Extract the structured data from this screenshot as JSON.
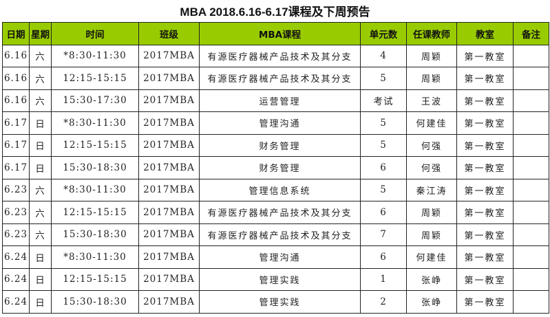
{
  "title": "MBA 2018.6.16-6.17课程及下周预告",
  "header_color": "#99cc00",
  "columns": [
    "日期",
    "星期",
    "时间",
    "班级",
    "MBA课程",
    "单元数",
    "任课教师",
    "教室",
    "备注"
  ],
  "rows": [
    [
      "6.16",
      "六",
      "*8:30-11:30",
      "2017MBA",
      "有源医疗器械产品技术及其分支",
      "4",
      "周颖",
      "第一教室",
      ""
    ],
    [
      "6.16",
      "六",
      "12:15-15:15",
      "2017MBA",
      "有源医疗器械产品技术及其分支",
      "5",
      "周颖",
      "第一教室",
      ""
    ],
    [
      "6.16",
      "六",
      "15:30-17:30",
      "2017MBA",
      "运营管理",
      "考试",
      "王波",
      "第一教室",
      ""
    ],
    [
      "6.17",
      "日",
      "*8:30-11:30",
      "2017MBA",
      "管理沟通",
      "5",
      "何建佳",
      "第一教室",
      ""
    ],
    [
      "6.17",
      "日",
      "12:15-15:15",
      "2017MBA",
      "财务管理",
      "5",
      "何强",
      "第一教室",
      ""
    ],
    [
      "6.17",
      "日",
      "15:30-18:30",
      "2017MBA",
      "财务管理",
      "6",
      "何强",
      "第一教室",
      ""
    ],
    [
      "6.23",
      "六",
      "*8:30-11:30",
      "2017MBA",
      "管理信息系统",
      "5",
      "秦江涛",
      "第一教室",
      ""
    ],
    [
      "6.23",
      "六",
      "12:15-15:15",
      "2017MBA",
      "有源医疗器械产品技术及其分支",
      "6",
      "周颖",
      "第一教室",
      ""
    ],
    [
      "6.23",
      "六",
      "15:30-18:30",
      "2017MBA",
      "有源医疗器械产品技术及其分支",
      "7",
      "周颖",
      "第一教室",
      ""
    ],
    [
      "6.24",
      "日",
      "*8:30-11:30",
      "2017MBA",
      "管理沟通",
      "6",
      "何建佳",
      "第一教室",
      ""
    ],
    [
      "6.24",
      "日",
      "12:15-15:15",
      "2017MBA",
      "管理实践",
      "1",
      "张峥",
      "第一教室",
      ""
    ],
    [
      "6.24",
      "日",
      "15:30-18:30",
      "2017MBA",
      "管理实践",
      "2",
      "张峥",
      "第一教室",
      ""
    ]
  ]
}
